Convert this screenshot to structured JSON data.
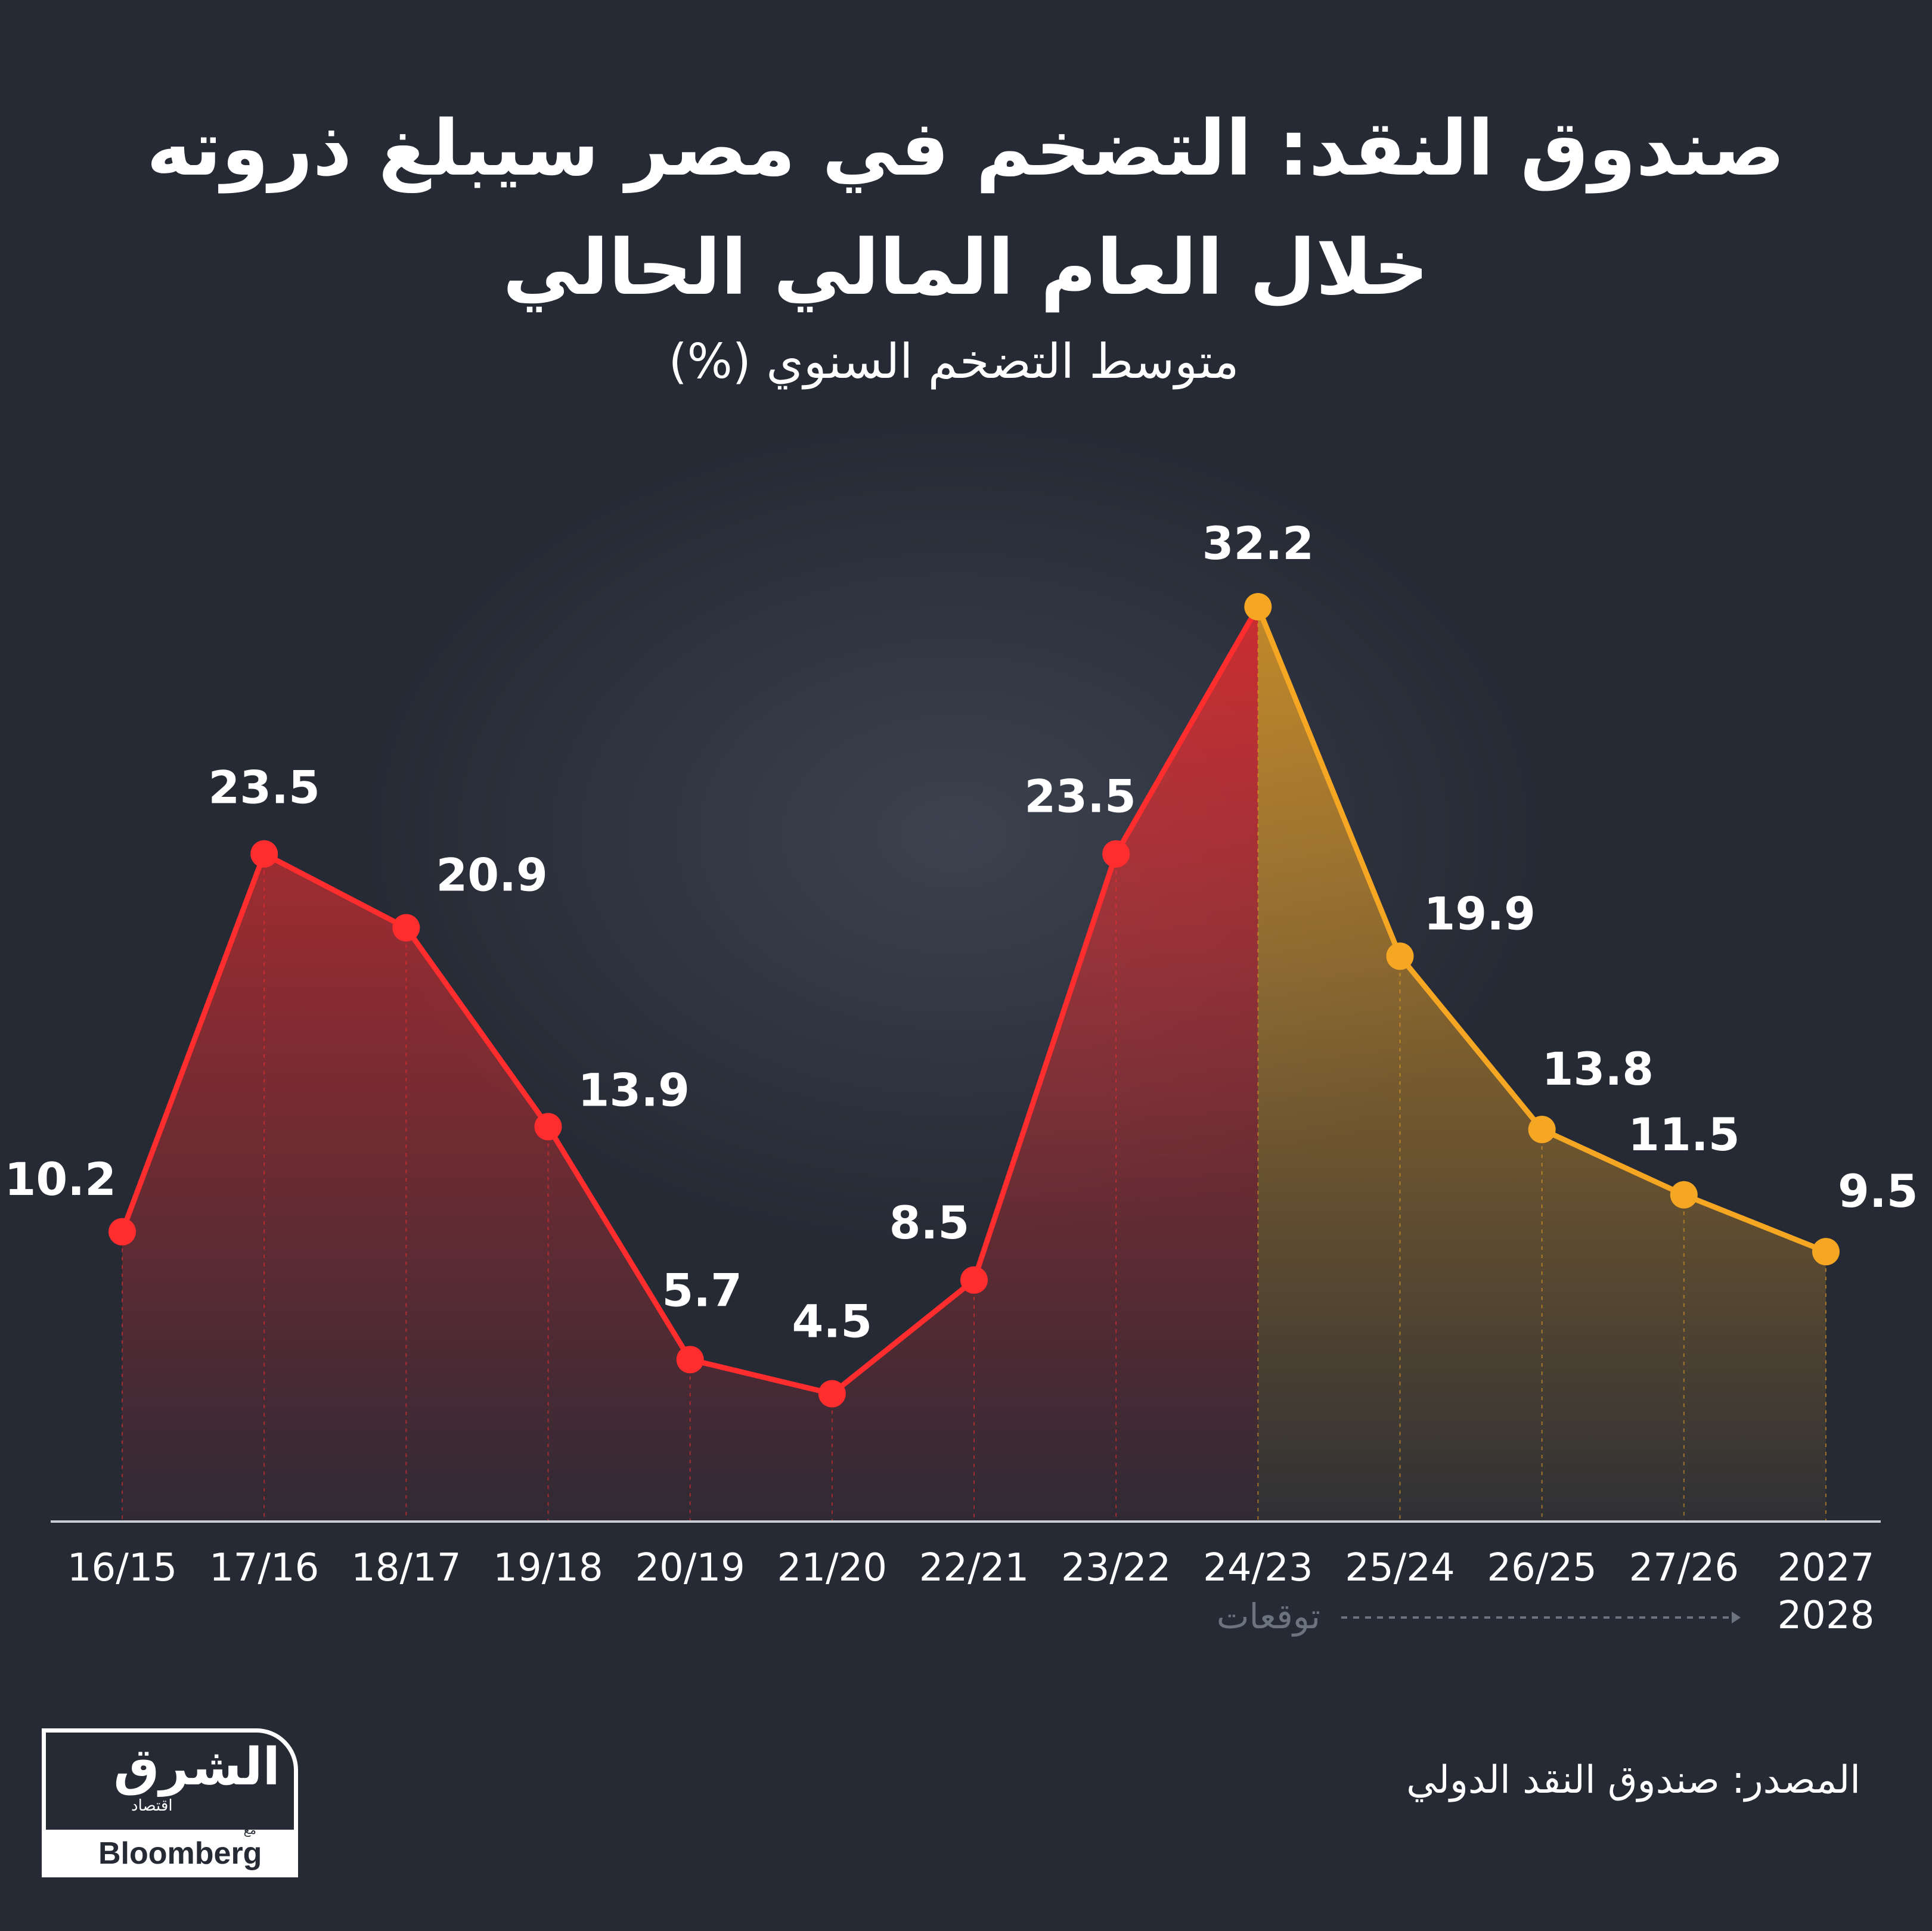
{
  "title_line1": "صندوق النقد: التضخم في مصر سيبلغ ذروته",
  "title_line2": "خلال العام المالي الحالي",
  "subtitle": "متوسط التضخم السنوي (%)",
  "forecast_label": "توقعات",
  "source": "المصدر: صندوق النقد الدولي",
  "logo": {
    "main": "الشرق",
    "sub": "اقتصاد",
    "with": "مع",
    "partner": "Bloomberg"
  },
  "colors": {
    "background": "#252a35",
    "actual": "#ff2d2d",
    "forecast": "#f5a623"
  },
  "chart_data": {
    "type": "line",
    "title": "صندوق النقد: التضخم في مصر سيبلغ ذروته خلال العام المالي الحالي",
    "ylabel": "متوسط التضخم السنوي (%)",
    "categories": [
      "16/15",
      "17/16",
      "18/17",
      "19/18",
      "20/19",
      "21/20",
      "22/21",
      "23/22",
      "24/23",
      "25/24",
      "26/25",
      "27/26",
      "2027 2028"
    ],
    "tick_labels": [
      [
        "16/15"
      ],
      [
        "17/16"
      ],
      [
        "18/17"
      ],
      [
        "19/18"
      ],
      [
        "20/19"
      ],
      [
        "21/20"
      ],
      [
        "22/21"
      ],
      [
        "23/22"
      ],
      [
        "24/23"
      ],
      [
        "25/24"
      ],
      [
        "26/25"
      ],
      [
        "27/26"
      ],
      [
        "2027",
        "2028"
      ]
    ],
    "values": [
      10.2,
      23.5,
      20.9,
      13.9,
      5.7,
      4.5,
      8.5,
      23.5,
      32.2,
      19.9,
      13.8,
      11.5,
      9.5
    ],
    "value_labels": [
      "10.2",
      "23.5",
      "20.9",
      "13.9",
      "5.7",
      "4.5",
      "8.5",
      "23.5",
      "32.2",
      "19.9",
      "13.8",
      "11.5",
      "9.5"
    ],
    "forecast_start_index": 8,
    "ylim": [
      0,
      34
    ],
    "grid": false
  }
}
